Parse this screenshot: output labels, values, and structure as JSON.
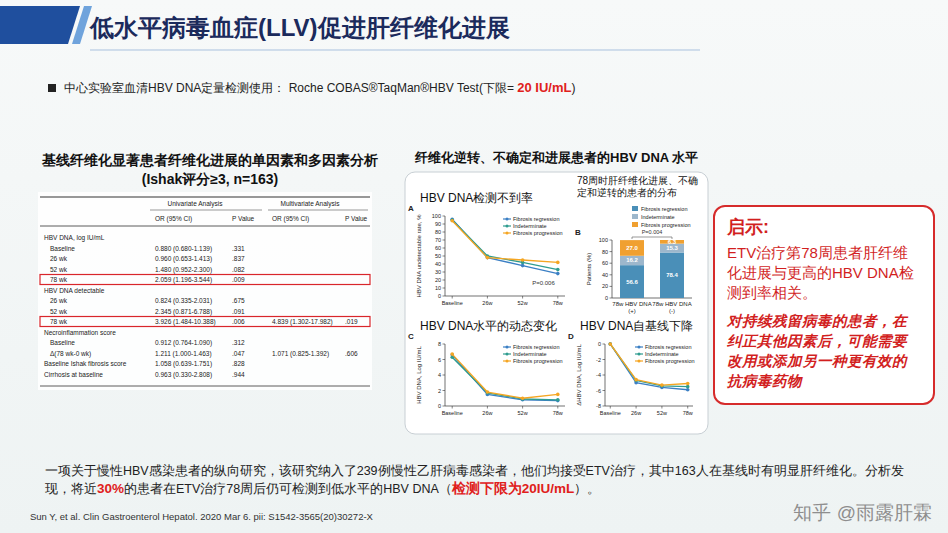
{
  "header": {
    "title": "低水平病毒血症(LLV)促进肝纤维化进展"
  },
  "bullet": [
    {
      "text": "中心实验室血清HBV DNA定量检测使用： Roche COBAS®TaqMan®HBV Test(下限= "
    },
    {
      "text": "20 IU/mL",
      "emphasis": true
    },
    {
      "text": ")"
    }
  ],
  "table": {
    "title": [
      "基线纤维化显著患者纤维化进展的单因素和多因素分析",
      "(Ishak评分≥3, n=163)"
    ],
    "group_headers": [
      "Univariate Analysis",
      "Multivariate Analysis"
    ],
    "column_headers": [
      "OR (95% CI)",
      "P Value",
      "OR (95% CI)",
      "P Value"
    ],
    "rows": [
      {
        "label": "HBV DNA, log IU/mL"
      },
      {
        "label": "Baseline",
        "indent": true,
        "cells": [
          "0.880 (0.680-1.139)",
          ".331",
          null,
          null
        ]
      },
      {
        "label": "26 wk",
        "indent": true,
        "cells": [
          "0.960 (0.653-1.413)",
          ".837",
          null,
          null
        ]
      },
      {
        "label": "52 wk",
        "indent": true,
        "cells": [
          "1.480 (0.952-2.300)",
          ".082",
          null,
          null
        ]
      },
      {
        "label": "78 wk",
        "indent": true,
        "highlight": true,
        "cells": [
          "2.059 (1.196-3.544)",
          ".009",
          null,
          null
        ]
      },
      {
        "label": "HBV DNA detectable"
      },
      {
        "label": "26 wk",
        "indent": true,
        "cells": [
          "0.824 (0.335-2.031)",
          ".675",
          null,
          null
        ]
      },
      {
        "label": "52 wk",
        "indent": true,
        "cells": [
          "2.345 (0.871-6.788)",
          ".091",
          null,
          null
        ]
      },
      {
        "label": "78 wk",
        "indent": true,
        "highlight": true,
        "cells": [
          "3.926 (1.484-10.388)",
          ".006",
          "4.839 (1.302-17.982)",
          ".019"
        ]
      },
      {
        "label": "Necroinflammation score"
      },
      {
        "label": "Baseline",
        "indent": true,
        "cells": [
          "0.912 (0.764-1.090)",
          ".312",
          null,
          null
        ]
      },
      {
        "label": "Δ(78 wk-0 wk)",
        "indent": true,
        "cells": [
          "1.211 (1.000-1.463)",
          ".047",
          "1.071 (0.825-1.392)",
          ".606"
        ]
      },
      {
        "label": "Baseline Ishak fibrosis score",
        "cells": [
          "1.058 (0.639-1.751)",
          ".828",
          null,
          null
        ]
      },
      {
        "label": "Cirrhosis at baseline",
        "cells": [
          "0.963 (0.330-2.808)",
          ".944",
          null,
          null
        ]
      }
    ]
  },
  "panel_title": "纤维化逆转、不确定和进展患者的HBV DNA 水平",
  "chart_data": [
    {
      "type": "line",
      "label": "A",
      "title": "HBV DNA检测不到率",
      "y_label": "HBV DNA undetectable rate, %",
      "categories": [
        "Baseline",
        "26w",
        "52w",
        "78w"
      ],
      "series": [
        {
          "name": "Fibrosis regression",
          "color": "#3b7fc4",
          "values": [
            96,
            48,
            38,
            28
          ]
        },
        {
          "name": "Indeterminate",
          "color": "#2f9c8f",
          "values": [
            95,
            50,
            42,
            33
          ]
        },
        {
          "name": "Fibrosis progression",
          "color": "#f5a623",
          "values": [
            94,
            48,
            45,
            42
          ]
        }
      ],
      "ylim": [
        0,
        100
      ],
      "yticks": [
        0,
        10,
        20,
        30,
        40,
        50,
        60,
        70,
        80,
        90,
        100
      ],
      "grid": false,
      "legend": "upper right",
      "marker": "circle",
      "annotations": [
        "P=0.006"
      ]
    },
    {
      "type": "bar",
      "label": "B",
      "title": "78周时肝纤维化进展、不确定和逆转的患者的分布",
      "y_label": "Patients (%)",
      "categories": [
        "78w HBV DNA (+)",
        "78w HBV DNA (-)"
      ],
      "series": [
        {
          "name": "Fibrosis regression",
          "color": "#4a8fb8",
          "values": [
            56.6,
            78.4
          ]
        },
        {
          "name": "Indeterminate",
          "color": "#9db7cc",
          "values": [
            16.2,
            15.3
          ]
        },
        {
          "name": "Fibrosis progression",
          "color": "#f0a030",
          "values": [
            27.0,
            6.3
          ],
          "value_labels": [
            "27.0",
            "6.3"
          ]
        }
      ],
      "stacked": true,
      "data_labels": true,
      "ylim": [
        0,
        100
      ],
      "yticks": [
        0,
        20,
        40,
        60,
        80,
        100
      ],
      "grid": false,
      "legend": "top",
      "annotations": [
        "P=0.004"
      ]
    },
    {
      "type": "line",
      "label": "C",
      "title": "HBV DNA水平的动态变化",
      "y_label": "HBV DNA, Log IU/mL",
      "categories": [
        "Baseline",
        "26w",
        "52w",
        "78w"
      ],
      "series": [
        {
          "name": "Fibrosis regression",
          "color": "#3b7fc4",
          "values": [
            6.6,
            1.5,
            0.8,
            0.7
          ]
        },
        {
          "name": "Indeterminate",
          "color": "#2f9c8f",
          "values": [
            6.3,
            1.7,
            0.9,
            0.8
          ]
        },
        {
          "name": "Fibrosis progression",
          "color": "#f5a623",
          "values": [
            6.7,
            1.8,
            1.0,
            1.5
          ]
        }
      ],
      "ylim": [
        0,
        8
      ],
      "yticks": [
        0,
        2,
        4,
        6,
        8
      ],
      "grid": false,
      "legend": "upper right",
      "marker": "circle"
    },
    {
      "type": "line",
      "label": "D",
      "title": "HBV DNA自基线下降",
      "y_label": "ΔHBV DNA, Log IU/mL",
      "categories": [
        "Baseline",
        "26w",
        "52w",
        "78w"
      ],
      "series": [
        {
          "name": "Fibrosis regression",
          "color": "#3b7fc4",
          "values": [
            0,
            -5.0,
            -5.6,
            -5.9
          ]
        },
        {
          "name": "Indeterminate",
          "color": "#2f9c8f",
          "values": [
            0,
            -4.7,
            -5.4,
            -5.5
          ]
        },
        {
          "name": "Fibrosis progression",
          "color": "#f5a623",
          "values": [
            0,
            -4.6,
            -5.3,
            -5.1
          ]
        }
      ],
      "ylim": [
        -8,
        0
      ],
      "yticks": [
        -8,
        -6,
        -4,
        -2,
        0
      ],
      "grid": false,
      "legend": "upper right",
      "marker": "circle"
    }
  ],
  "insight": {
    "heading": "启示:",
    "text": "ETV治疗第78周患者肝纤维化进展与更高的HBV DNA检测到率相关。",
    "emphasis": "对持续残留病毒的患者，在纠正其他因素后，可能需要改用或添加另一种更有效的抗病毒药物"
  },
  "summary": [
    {
      "text": "一项关于慢性HBV感染患者的纵向研究，该研究纳入了239例慢性乙肝病毒感染者，他们均接受ETV治疗，其中163人在基线时有明显肝纤维化。分析发现，将近"
    },
    {
      "text": "30%",
      "emphasis": true
    },
    {
      "text": "的患者在ETV治疗78周后仍可检测到低水平的HBV DNA（"
    },
    {
      "text": "检测下限为20IU/mL",
      "emphasis": true
    },
    {
      "text": "）。"
    }
  ],
  "citation": "Sun Y, et al. Clin Gastroenterol Hepatol. 2020 Mar 6. pii: S1542-3565(20)30272-X",
  "watermark": "知乎 @雨露肝霖"
}
